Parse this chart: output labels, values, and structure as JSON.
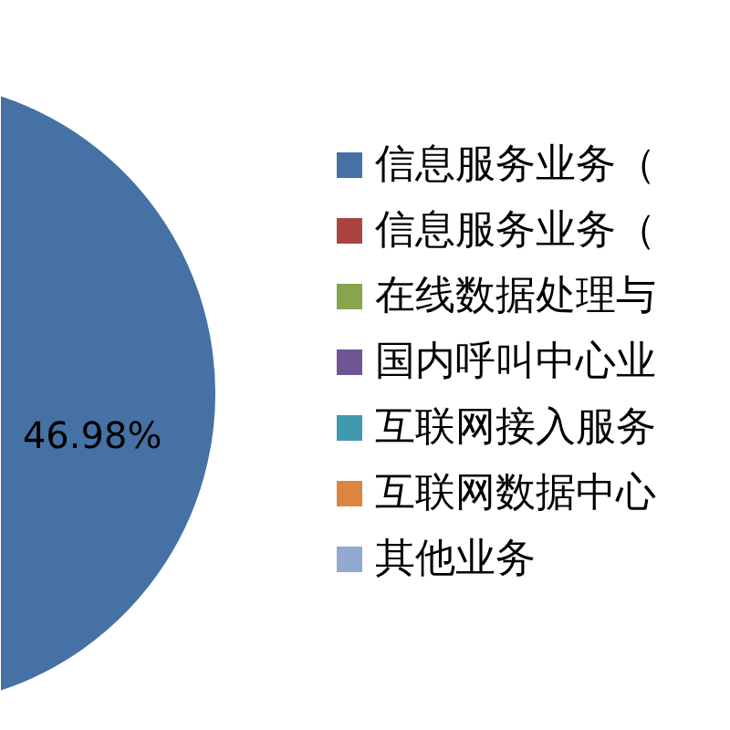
{
  "chart_data": {
    "type": "pie",
    "categories": [
      "信息服务业务（",
      "信息服务业务（",
      "在线数据处理与",
      "国内呼叫中心业",
      "互联网接入服务",
      "互联网数据中心",
      "其他业务"
    ],
    "values": [
      46.98,
      null,
      null,
      null,
      null,
      null,
      null
    ],
    "colors": [
      "#4571a5",
      "#aa4443",
      "#88a44d",
      "#705595",
      "#4099ae",
      "#db8540",
      "#93a9d0"
    ],
    "value_labels": [
      "46.98%",
      null,
      null,
      null,
      null,
      null,
      null
    ],
    "legend": "right"
  }
}
